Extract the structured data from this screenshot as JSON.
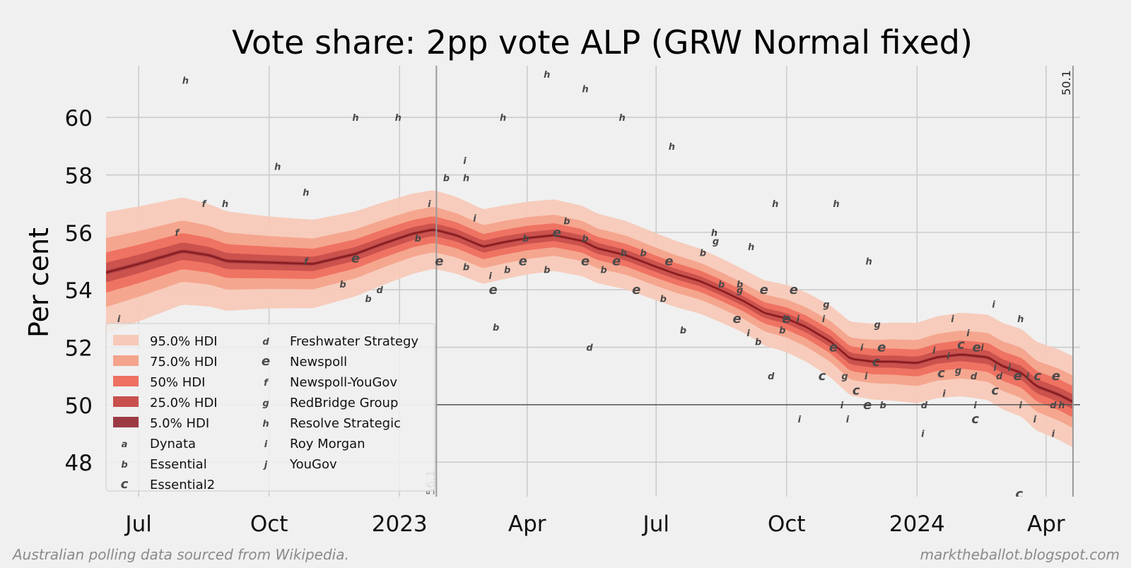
{
  "chart_data": {
    "type": "line",
    "title": "Vote share: 2pp vote ALP (GRW Normal fixed)",
    "ylabel": "Per cent",
    "xlabel": "",
    "ylim": [
      46.8,
      61.8
    ],
    "xlim": [
      "2022-06-08",
      "2024-04-25"
    ],
    "grid": true,
    "legend_placement": "lower-left",
    "y_ticks": [
      48,
      50,
      52,
      54,
      56,
      58,
      60
    ],
    "x_ticks": [
      {
        "date": "2022-07-01",
        "label": "Jul"
      },
      {
        "date": "2022-10-01",
        "label": "Oct"
      },
      {
        "date": "2023-01-01",
        "label": "2023"
      },
      {
        "date": "2023-04-01",
        "label": "Apr"
      },
      {
        "date": "2023-07-01",
        "label": "Jul"
      },
      {
        "date": "2023-10-01",
        "label": "Oct"
      },
      {
        "date": "2024-01-01",
        "label": "2024"
      },
      {
        "date": "2024-04-01",
        "label": "Apr"
      }
    ],
    "reference_line": 50,
    "annotations": [
      {
        "date": "2023-01-27",
        "label": "56.1"
      },
      {
        "date": "2024-04-20",
        "label": "50.1"
      }
    ],
    "source_note": "Australian polling data sourced from Wikipedia.",
    "site_note": "marktheballot.blogspot.com",
    "colors": {
      "median": "#8b1a1a",
      "hdi_95": "#f7c9b8",
      "hdi_75": "#f4a38c",
      "hdi_50": "#ee7060",
      "hdi_25": "#c8504c",
      "hdi_5": "#9c3a44",
      "points": "#4a4a4a",
      "background": "#f0f0f0",
      "grid": "#cccccc"
    },
    "median_series": [
      [
        "2022-06-08",
        54.6
      ],
      [
        "2022-07-01",
        54.9
      ],
      [
        "2022-08-01",
        55.35
      ],
      [
        "2022-08-20",
        55.2
      ],
      [
        "2022-09-01",
        55.0
      ],
      [
        "2022-10-01",
        54.95
      ],
      [
        "2022-11-01",
        54.9
      ],
      [
        "2022-12-01",
        55.25
      ],
      [
        "2022-12-20",
        55.6
      ],
      [
        "2023-01-10",
        55.95
      ],
      [
        "2023-01-25",
        56.1
      ],
      [
        "2023-02-10",
        55.9
      ],
      [
        "2023-03-01",
        55.5
      ],
      [
        "2023-03-15",
        55.65
      ],
      [
        "2023-04-01",
        55.8
      ],
      [
        "2023-04-20",
        55.9
      ],
      [
        "2023-05-10",
        55.7
      ],
      [
        "2023-05-20",
        55.45
      ],
      [
        "2023-06-10",
        55.2
      ],
      [
        "2023-07-01",
        54.8
      ],
      [
        "2023-07-15",
        54.55
      ],
      [
        "2023-08-01",
        54.3
      ],
      [
        "2023-08-15",
        54.0
      ],
      [
        "2023-09-01",
        53.6
      ],
      [
        "2023-09-15",
        53.2
      ],
      [
        "2023-10-01",
        53.0
      ],
      [
        "2023-10-15",
        52.7
      ],
      [
        "2023-11-01",
        52.2
      ],
      [
        "2023-11-15",
        51.6
      ],
      [
        "2023-12-01",
        51.5
      ],
      [
        "2023-12-15",
        51.5
      ],
      [
        "2024-01-01",
        51.45
      ],
      [
        "2024-01-15",
        51.65
      ],
      [
        "2024-02-01",
        51.75
      ],
      [
        "2024-02-20",
        51.65
      ],
      [
        "2024-03-01",
        51.35
      ],
      [
        "2024-03-15",
        51.1
      ],
      [
        "2024-03-25",
        50.65
      ],
      [
        "2024-04-10",
        50.35
      ],
      [
        "2024-04-20",
        50.1
      ]
    ],
    "hdi_halfwidths": [
      {
        "label": "95.0% HDI",
        "halfwidth": [
          2.1,
          1.6,
          1.3,
          1.1,
          1.4,
          1.6
        ]
      },
      {
        "label": "75.0% HDI",
        "halfwidth": [
          1.2,
          0.92,
          0.75,
          0.62,
          0.8,
          0.92
        ]
      },
      {
        "label": "50% HDI",
        "halfwidth": [
          0.7,
          0.55,
          0.44,
          0.36,
          0.47,
          0.55
        ]
      },
      {
        "label": "25.0% HDI",
        "halfwidth": [
          0.34,
          0.26,
          0.21,
          0.17,
          0.22,
          0.26
        ]
      },
      {
        "label": "5.0% HDI",
        "halfwidth": [
          0.07,
          0.06,
          0.05,
          0.04,
          0.05,
          0.06
        ]
      }
    ],
    "hdi_halfwidth_dates": [
      "2022-06-08",
      "2022-10-01",
      "2023-03-01",
      "2023-09-01",
      "2024-01-01",
      "2024-04-25"
    ],
    "legend": [
      {
        "label": "95.0% HDI",
        "kind": "band",
        "color": "#f7c9b8"
      },
      {
        "label": "75.0% HDI",
        "kind": "band",
        "color": "#f4a38c"
      },
      {
        "label": "50% HDI",
        "kind": "band",
        "color": "#ee7060"
      },
      {
        "label": "25.0% HDI",
        "kind": "band",
        "color": "#c8504c"
      },
      {
        "label": "5.0% HDI",
        "kind": "band",
        "color": "#9c3a44"
      },
      {
        "label": "Dynata",
        "kind": "marker",
        "marker": "a"
      },
      {
        "label": "Essential",
        "kind": "marker",
        "marker": "b"
      },
      {
        "label": "Essential2",
        "kind": "marker",
        "marker": "c"
      },
      {
        "label": "Freshwater Strategy",
        "kind": "marker",
        "marker": "d"
      },
      {
        "label": "Newspoll",
        "kind": "marker",
        "marker": "e"
      },
      {
        "label": "Newspoll-YouGov",
        "kind": "marker",
        "marker": "f"
      },
      {
        "label": "RedBridge Group",
        "kind": "marker",
        "marker": "g"
      },
      {
        "label": "Resolve Strategic",
        "kind": "marker",
        "marker": "h"
      },
      {
        "label": "Roy Morgan",
        "kind": "marker",
        "marker": "i"
      },
      {
        "label": "YouGov",
        "kind": "marker",
        "marker": "j"
      }
    ],
    "polls": [
      {
        "m": "i",
        "d": "2022-06-17",
        "y": 53.0
      },
      {
        "m": "f",
        "d": "2022-07-28",
        "y": 56.0
      },
      {
        "m": "h",
        "d": "2022-08-03",
        "y": 61.3
      },
      {
        "m": "f",
        "d": "2022-08-16",
        "y": 57.0
      },
      {
        "m": "h",
        "d": "2022-08-31",
        "y": 57.0
      },
      {
        "m": "h",
        "d": "2022-10-07",
        "y": 58.3
      },
      {
        "m": "h",
        "d": "2022-10-27",
        "y": 57.4
      },
      {
        "m": "f",
        "d": "2022-10-27",
        "y": 55.0
      },
      {
        "m": "b",
        "d": "2022-11-22",
        "y": 54.2
      },
      {
        "m": "e",
        "d": "2022-12-01",
        "y": 55.1
      },
      {
        "m": "h",
        "d": "2022-12-01",
        "y": 60.0
      },
      {
        "m": "b",
        "d": "2022-12-10",
        "y": 53.7
      },
      {
        "m": "d",
        "d": "2022-12-18",
        "y": 54.0
      },
      {
        "m": "h",
        "d": "2022-12-31",
        "y": 60.0
      },
      {
        "m": "b",
        "d": "2023-01-14",
        "y": 55.8
      },
      {
        "m": "i",
        "d": "2023-01-22",
        "y": 57.0
      },
      {
        "m": "e",
        "d": "2023-01-29",
        "y": 55.0
      },
      {
        "m": "b",
        "d": "2023-02-03",
        "y": 57.9
      },
      {
        "m": "i",
        "d": "2023-02-16",
        "y": 58.5
      },
      {
        "m": "h",
        "d": "2023-02-17",
        "y": 57.9
      },
      {
        "m": "b",
        "d": "2023-02-17",
        "y": 54.8
      },
      {
        "m": "i",
        "d": "2023-02-23",
        "y": 56.5
      },
      {
        "m": "i",
        "d": "2023-03-06",
        "y": 54.5
      },
      {
        "m": "e",
        "d": "2023-03-08",
        "y": 54.0
      },
      {
        "m": "b",
        "d": "2023-03-10",
        "y": 52.7
      },
      {
        "m": "h",
        "d": "2023-03-15",
        "y": 60.0
      },
      {
        "m": "b",
        "d": "2023-03-18",
        "y": 54.7
      },
      {
        "m": "b",
        "d": "2023-03-31",
        "y": 55.8
      },
      {
        "m": "e",
        "d": "2023-03-29",
        "y": 55.0
      },
      {
        "m": "h",
        "d": "2023-04-15",
        "y": 61.5
      },
      {
        "m": "b",
        "d": "2023-04-15",
        "y": 54.7
      },
      {
        "m": "e",
        "d": "2023-04-22",
        "y": 56.0
      },
      {
        "m": "b",
        "d": "2023-04-29",
        "y": 56.4
      },
      {
        "m": "h",
        "d": "2023-05-12",
        "y": 61.0
      },
      {
        "m": "b",
        "d": "2023-05-12",
        "y": 55.8
      },
      {
        "m": "e",
        "d": "2023-05-12",
        "y": 55.0
      },
      {
        "m": "d",
        "d": "2023-05-15",
        "y": 52.0
      },
      {
        "m": "b",
        "d": "2023-05-25",
        "y": 54.7
      },
      {
        "m": "e",
        "d": "2023-06-03",
        "y": 55.0
      },
      {
        "m": "h",
        "d": "2023-06-07",
        "y": 60.0
      },
      {
        "m": "b",
        "d": "2023-06-08",
        "y": 55.3
      },
      {
        "m": "b",
        "d": "2023-06-22",
        "y": 55.3
      },
      {
        "m": "e",
        "d": "2023-06-17",
        "y": 54.0
      },
      {
        "m": "h",
        "d": "2023-07-12",
        "y": 59.0
      },
      {
        "m": "b",
        "d": "2023-07-06",
        "y": 53.7
      },
      {
        "m": "e",
        "d": "2023-07-10",
        "y": 55.0
      },
      {
        "m": "b",
        "d": "2023-07-20",
        "y": 52.6
      },
      {
        "m": "b",
        "d": "2023-08-03",
        "y": 55.3
      },
      {
        "m": "h",
        "d": "2023-08-11",
        "y": 56.0
      },
      {
        "m": "g",
        "d": "2023-08-12",
        "y": 55.7
      },
      {
        "m": "b",
        "d": "2023-08-16",
        "y": 54.2
      },
      {
        "m": "b",
        "d": "2023-08-29",
        "y": 54.2
      },
      {
        "m": "g",
        "d": "2023-08-29",
        "y": 54.0
      },
      {
        "m": "e",
        "d": "2023-08-27",
        "y": 53.0
      },
      {
        "m": "h",
        "d": "2023-09-06",
        "y": 55.5
      },
      {
        "m": "i",
        "d": "2023-09-04",
        "y": 52.5
      },
      {
        "m": "e",
        "d": "2023-09-15",
        "y": 54.0
      },
      {
        "m": "b",
        "d": "2023-09-11",
        "y": 52.2
      },
      {
        "m": "h",
        "d": "2023-09-23",
        "y": 57.0
      },
      {
        "m": "d",
        "d": "2023-09-20",
        "y": 51.0
      },
      {
        "m": "i",
        "d": "2023-09-29",
        "y": 53.0
      },
      {
        "m": "b",
        "d": "2023-09-28",
        "y": 52.6
      },
      {
        "m": "e",
        "d": "2023-10-01",
        "y": 53.0
      },
      {
        "m": "e",
        "d": "2023-10-06",
        "y": 54.0
      },
      {
        "m": "i",
        "d": "2023-10-09",
        "y": 53.0
      },
      {
        "m": "i",
        "d": "2023-10-10",
        "y": 49.5
      },
      {
        "m": "g",
        "d": "2023-10-29",
        "y": 53.5
      },
      {
        "m": "i",
        "d": "2023-10-27",
        "y": 53.0
      },
      {
        "m": "e",
        "d": "2023-11-03",
        "y": 52.0
      },
      {
        "m": "c",
        "d": "2023-10-26",
        "y": 51.0
      },
      {
        "m": "h",
        "d": "2023-11-05",
        "y": 57.0
      },
      {
        "m": "i",
        "d": "2023-11-09",
        "y": 50.0
      },
      {
        "m": "g",
        "d": "2023-11-11",
        "y": 51.0
      },
      {
        "m": "i",
        "d": "2023-11-13",
        "y": 49.5
      },
      {
        "m": "c",
        "d": "2023-11-19",
        "y": 50.5
      },
      {
        "m": "i",
        "d": "2023-11-23",
        "y": 52.0
      },
      {
        "m": "e",
        "d": "2023-11-27",
        "y": 50.0
      },
      {
        "m": "i",
        "d": "2023-11-26",
        "y": 51.0
      },
      {
        "m": "h",
        "d": "2023-11-28",
        "y": 55.0
      },
      {
        "m": "g",
        "d": "2023-12-04",
        "y": 52.8
      },
      {
        "m": "c",
        "d": "2023-12-03",
        "y": 51.5
      },
      {
        "m": "e",
        "d": "2023-12-07",
        "y": 52.0
      },
      {
        "m": "b",
        "d": "2023-12-08",
        "y": 50.0
      },
      {
        "m": "d",
        "d": "2024-01-06",
        "y": 50.0
      },
      {
        "m": "i",
        "d": "2024-01-05",
        "y": 49.0
      },
      {
        "m": "i",
        "d": "2024-01-13",
        "y": 51.9
      },
      {
        "m": "c",
        "d": "2024-01-18",
        "y": 51.1
      },
      {
        "m": "i",
        "d": "2024-01-20",
        "y": 50.4
      },
      {
        "m": "i",
        "d": "2024-01-23",
        "y": 51.7
      },
      {
        "m": "i",
        "d": "2024-01-26",
        "y": 53.0
      },
      {
        "m": "g",
        "d": "2024-01-30",
        "y": 51.2
      },
      {
        "m": "c",
        "d": "2024-02-01",
        "y": 52.1
      },
      {
        "m": "i",
        "d": "2024-02-06",
        "y": 52.5
      },
      {
        "m": "d",
        "d": "2024-02-10",
        "y": 51.0
      },
      {
        "m": "i",
        "d": "2024-02-11",
        "y": 50.0
      },
      {
        "m": "c",
        "d": "2024-02-11",
        "y": 49.5
      },
      {
        "m": "e",
        "d": "2024-02-12",
        "y": 52.0
      },
      {
        "m": "i",
        "d": "2024-02-16",
        "y": 52.0
      },
      {
        "m": "i",
        "d": "2024-02-24",
        "y": 53.5
      },
      {
        "m": "c",
        "d": "2024-02-25",
        "y": 50.5
      },
      {
        "m": "i",
        "d": "2024-02-25",
        "y": 51.3
      },
      {
        "m": "d",
        "d": "2024-02-28",
        "y": 51.0
      },
      {
        "m": "i",
        "d": "2024-03-06",
        "y": 51.3
      },
      {
        "m": "c",
        "d": "2024-03-13",
        "y": 46.9
      },
      {
        "m": "h",
        "d": "2024-03-14",
        "y": 53.0
      },
      {
        "m": "e",
        "d": "2024-03-12",
        "y": 51.0
      },
      {
        "m": "i",
        "d": "2024-03-14",
        "y": 50.0
      },
      {
        "m": "i",
        "d": "2024-03-19",
        "y": 51.0
      },
      {
        "m": "i",
        "d": "2024-03-24",
        "y": 49.5
      },
      {
        "m": "c",
        "d": "2024-03-26",
        "y": 51.0
      },
      {
        "m": "d",
        "d": "2024-04-06",
        "y": 50.0
      },
      {
        "m": "i",
        "d": "2024-04-06",
        "y": 49.0
      },
      {
        "m": "e",
        "d": "2024-04-08",
        "y": 51.0
      },
      {
        "m": "h",
        "d": "2024-04-12",
        "y": 50.0
      }
    ]
  }
}
